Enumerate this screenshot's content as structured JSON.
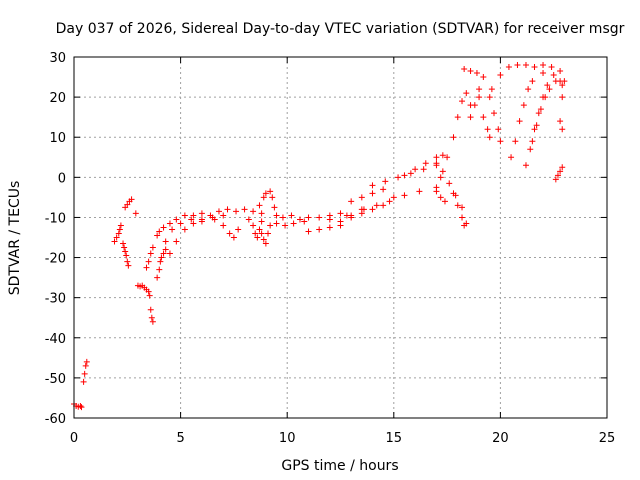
{
  "chart_data": {
    "type": "scatter",
    "title": "Day 037 of 2026, Sidereal Day-to-day VTEC variation (SDTVAR) for receiver msgr",
    "xlabel": "GPS time / hours",
    "ylabel": "SDTVAR / TECUs",
    "xlim": [
      0,
      25
    ],
    "ylim": [
      -60,
      30
    ],
    "xticks": [
      "0",
      "5",
      "10",
      "15",
      "20",
      "25"
    ],
    "yticks": [
      "30",
      "20",
      "10",
      "0",
      "-10",
      "-20",
      "-30",
      "-40",
      "-50",
      "-60"
    ],
    "grid": true,
    "marker": "+",
    "color": "#ff0000",
    "series": [
      {
        "points": [
          [
            0.0,
            -56.5
          ],
          [
            0.1,
            -57.0
          ],
          [
            0.2,
            -57.2
          ],
          [
            0.3,
            -57.0
          ],
          [
            0.35,
            -57.3
          ],
          [
            0.45,
            -51.0
          ],
          [
            0.5,
            -49.0
          ],
          [
            0.55,
            -47.0
          ],
          [
            0.6,
            -46.0
          ],
          [
            1.9,
            -16.0
          ],
          [
            2.0,
            -15.0
          ],
          [
            2.1,
            -14.0
          ],
          [
            2.15,
            -13.0
          ],
          [
            2.2,
            -12.0
          ],
          [
            2.3,
            -16.5
          ],
          [
            2.35,
            -17.5
          ],
          [
            2.4,
            -18.5
          ],
          [
            2.45,
            -19.5
          ],
          [
            2.5,
            -21.0
          ],
          [
            2.55,
            -22.0
          ],
          [
            2.4,
            -7.5
          ],
          [
            2.5,
            -6.8
          ],
          [
            2.6,
            -6.0
          ],
          [
            2.7,
            -5.5
          ],
          [
            2.9,
            -9.0
          ],
          [
            3.0,
            -27.0
          ],
          [
            3.1,
            -27.2
          ],
          [
            3.2,
            -27.0
          ],
          [
            3.3,
            -27.5
          ],
          [
            3.4,
            -28.0
          ],
          [
            3.5,
            -28.5
          ],
          [
            3.55,
            -29.5
          ],
          [
            3.6,
            -33.0
          ],
          [
            3.65,
            -35.0
          ],
          [
            3.7,
            -36.0
          ],
          [
            3.4,
            -22.5
          ],
          [
            3.5,
            -21.0
          ],
          [
            3.6,
            -19.0
          ],
          [
            3.7,
            -17.5
          ],
          [
            3.9,
            -25.0
          ],
          [
            4.0,
            -23.0
          ],
          [
            4.05,
            -21.0
          ],
          [
            4.1,
            -20.0
          ],
          [
            4.2,
            -19.0
          ],
          [
            4.3,
            -18.0
          ],
          [
            3.9,
            -14.5
          ],
          [
            4.0,
            -13.5
          ],
          [
            4.2,
            -12.5
          ],
          [
            4.5,
            -11.5
          ],
          [
            4.8,
            -10.5
          ],
          [
            5.2,
            -9.5
          ],
          [
            5.6,
            -9.5
          ],
          [
            6.0,
            -9.0
          ],
          [
            6.4,
            -9.5
          ],
          [
            6.8,
            -8.5
          ],
          [
            7.2,
            -8.0
          ],
          [
            7.6,
            -8.5
          ],
          [
            8.0,
            -8.0
          ],
          [
            8.4,
            -8.5
          ],
          [
            8.8,
            -9.0
          ],
          [
            4.3,
            -16.0
          ],
          [
            4.6,
            -13.0
          ],
          [
            5.0,
            -11.5
          ],
          [
            5.5,
            -10.5
          ],
          [
            6.0,
            -10.5
          ],
          [
            6.5,
            -10.0
          ],
          [
            7.0,
            -9.5
          ],
          [
            4.5,
            -19.0
          ],
          [
            4.8,
            -16.0
          ],
          [
            5.2,
            -13.0
          ],
          [
            5.6,
            -11.5
          ],
          [
            6.0,
            -11.0
          ],
          [
            6.6,
            -10.5
          ],
          [
            7.0,
            -12.0
          ],
          [
            7.3,
            -14.0
          ],
          [
            7.5,
            -15.0
          ],
          [
            7.7,
            -13.0
          ],
          [
            8.2,
            -10.5
          ],
          [
            8.4,
            -12.0
          ],
          [
            8.5,
            -14.0
          ],
          [
            8.6,
            -15.0
          ],
          [
            8.7,
            -13.0
          ],
          [
            8.8,
            -11.0
          ],
          [
            8.8,
            -14.0
          ],
          [
            8.9,
            -15.5
          ],
          [
            9.0,
            -16.5
          ],
          [
            9.1,
            -14.0
          ],
          [
            9.2,
            -12.0
          ],
          [
            8.7,
            -7.0
          ],
          [
            8.9,
            -5.0
          ],
          [
            9.0,
            -4.0
          ],
          [
            9.2,
            -3.5
          ],
          [
            9.3,
            -5.0
          ],
          [
            9.4,
            -7.5
          ],
          [
            9.5,
            -9.5
          ],
          [
            9.8,
            -10.0
          ],
          [
            10.2,
            -9.5
          ],
          [
            10.6,
            -10.5
          ],
          [
            11.0,
            -10.0
          ],
          [
            9.5,
            -11.5
          ],
          [
            9.9,
            -12.0
          ],
          [
            10.3,
            -11.5
          ],
          [
            10.8,
            -11.0
          ],
          [
            11.0,
            -13.5
          ],
          [
            11.5,
            -13.0
          ],
          [
            12.0,
            -12.5
          ],
          [
            12.5,
            -12.0
          ],
          [
            11.5,
            -10.0
          ],
          [
            12.0,
            -9.5
          ],
          [
            12.5,
            -9.0
          ],
          [
            13.0,
            -9.5
          ],
          [
            13.5,
            -8.0
          ],
          [
            12.5,
            -11.0
          ],
          [
            13.0,
            -10.0
          ],
          [
            13.5,
            -9.0
          ],
          [
            14.0,
            -8.0
          ],
          [
            14.5,
            -7.0
          ],
          [
            15.0,
            -5.0
          ],
          [
            12.0,
            -10.5
          ],
          [
            12.8,
            -9.5
          ],
          [
            13.6,
            -8.0
          ],
          [
            14.2,
            -7.0
          ],
          [
            14.8,
            -6.0
          ],
          [
            15.5,
            -4.5
          ],
          [
            16.2,
            -3.5
          ],
          [
            17.0,
            -2.5
          ],
          [
            13.0,
            -6.0
          ],
          [
            13.5,
            -5.0
          ],
          [
            14.0,
            -4.0
          ],
          [
            14.5,
            -3.0
          ],
          [
            14.0,
            -2.0
          ],
          [
            14.6,
            -1.0
          ],
          [
            15.2,
            0.0
          ],
          [
            15.8,
            1.0
          ],
          [
            16.4,
            2.0
          ],
          [
            17.0,
            3.5
          ],
          [
            15.5,
            0.5
          ],
          [
            16.0,
            2.0
          ],
          [
            16.5,
            3.5
          ],
          [
            17.0,
            5.0
          ],
          [
            17.3,
            5.5
          ],
          [
            17.0,
            -3.5
          ],
          [
            17.2,
            -5.0
          ],
          [
            17.4,
            -6.0
          ],
          [
            17.0,
            3.0
          ],
          [
            17.3,
            1.5
          ],
          [
            17.6,
            -1.5
          ],
          [
            17.9,
            -4.5
          ],
          [
            18.2,
            -7.5
          ],
          [
            18.4,
            -11.5
          ],
          [
            17.8,
            -4.0
          ],
          [
            18.0,
            -7.0
          ],
          [
            18.2,
            -10.0
          ],
          [
            18.3,
            -12.0
          ],
          [
            17.2,
            0.0
          ],
          [
            17.5,
            5.0
          ],
          [
            17.8,
            10.0
          ],
          [
            18.0,
            15.0
          ],
          [
            18.2,
            19.0
          ],
          [
            18.4,
            21.0
          ],
          [
            18.6,
            18.0
          ],
          [
            18.6,
            15.0
          ],
          [
            18.8,
            18.0
          ],
          [
            19.0,
            20.0
          ],
          [
            19.2,
            15.0
          ],
          [
            19.4,
            12.0
          ],
          [
            19.5,
            10.0
          ],
          [
            19.0,
            22.0
          ],
          [
            19.5,
            20.0
          ],
          [
            19.7,
            16.0
          ],
          [
            19.9,
            12.0
          ],
          [
            20.0,
            9.0
          ],
          [
            18.3,
            27.0
          ],
          [
            18.6,
            26.5
          ],
          [
            18.9,
            26.0
          ],
          [
            19.2,
            25.0
          ],
          [
            19.6,
            22.0
          ],
          [
            20.0,
            25.5
          ],
          [
            20.4,
            27.5
          ],
          [
            20.8,
            28.0
          ],
          [
            21.2,
            28.0
          ],
          [
            21.6,
            27.5
          ],
          [
            22.0,
            26.0
          ],
          [
            20.5,
            5.0
          ],
          [
            20.7,
            9.0
          ],
          [
            20.9,
            14.0
          ],
          [
            21.1,
            18.0
          ],
          [
            21.3,
            22.0
          ],
          [
            21.5,
            24.0
          ],
          [
            21.5,
            9.0
          ],
          [
            21.7,
            13.0
          ],
          [
            21.9,
            17.0
          ],
          [
            22.1,
            20.0
          ],
          [
            22.3,
            22.0
          ],
          [
            22.6,
            24.0
          ],
          [
            22.9,
            23.0
          ],
          [
            21.2,
            3.0
          ],
          [
            21.4,
            7.0
          ],
          [
            21.6,
            12.0
          ],
          [
            21.8,
            16.0
          ],
          [
            22.0,
            20.0
          ],
          [
            22.2,
            23.0
          ],
          [
            22.5,
            25.5
          ],
          [
            22.8,
            24.0
          ],
          [
            22.0,
            28.0
          ],
          [
            22.4,
            27.5
          ],
          [
            22.8,
            26.5
          ],
          [
            23.0,
            24.0
          ],
          [
            22.9,
            20.0
          ],
          [
            22.8,
            14.0
          ],
          [
            22.9,
            12.0
          ],
          [
            22.6,
            -0.5
          ],
          [
            22.7,
            0.5
          ],
          [
            22.8,
            1.5
          ],
          [
            22.9,
            2.5
          ]
        ]
      }
    ]
  }
}
